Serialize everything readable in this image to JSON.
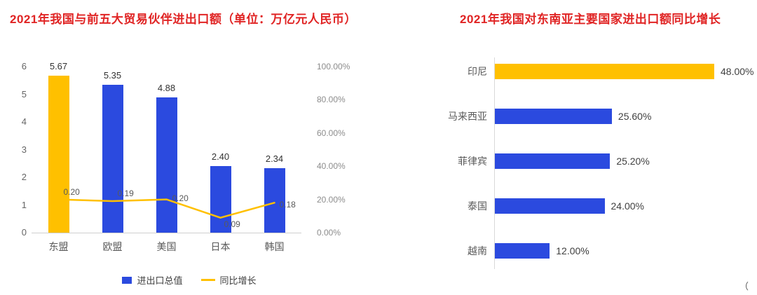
{
  "colors": {
    "title_red": "#E02424",
    "blue": "#2B4ADF",
    "gold": "#FFC000",
    "axis_gray": "#cfcfcf"
  },
  "chart_data": [
    {
      "type": "bar",
      "title": "2021年我国与前五大贸易伙伴进出口额（单位：万亿元人民币）",
      "categories": [
        "东盟",
        "欧盟",
        "美国",
        "日本",
        "韩国"
      ],
      "series": [
        {
          "name": "进出口总值",
          "type": "bar",
          "axis": "left",
          "values": [
            5.67,
            5.35,
            4.88,
            2.4,
            2.34
          ],
          "colors": [
            "#FFC000",
            "#2B4ADF",
            "#2B4ADF",
            "#2B4ADF",
            "#2B4ADF"
          ]
        },
        {
          "name": "同比增长",
          "type": "line",
          "axis": "right",
          "values": [
            0.2,
            0.19,
            0.2,
            0.09,
            0.18
          ],
          "color": "#FFC000"
        }
      ],
      "bar_labels": [
        "5.67",
        "5.35",
        "4.88",
        "2.40",
        "2.34"
      ],
      "line_labels": [
        "0.20",
        "0.19",
        "0.20",
        "0.09",
        "0.18"
      ],
      "left_axis": {
        "min": 0,
        "max": 6,
        "ticks": [
          "0",
          "1",
          "2",
          "3",
          "4",
          "5",
          "6"
        ]
      },
      "right_axis": {
        "min": 0,
        "max": 1,
        "ticks": [
          "0.00%",
          "20.00%",
          "40.00%",
          "60.00%",
          "80.00%",
          "100.00%"
        ]
      },
      "legend_position": "bottom",
      "grid": false
    },
    {
      "type": "bar",
      "orientation": "horizontal",
      "title": "2021年我国对东南亚主要国家进出口额同比增长",
      "categories": [
        "印尼",
        "马来西亚",
        "菲律宾",
        "泰国",
        "越南"
      ],
      "values": [
        48.0,
        25.6,
        25.2,
        24.0,
        12.0
      ],
      "value_labels": [
        "48.00%",
        "25.60%",
        "25.20%",
        "24.00%",
        "12.00%"
      ],
      "colors": [
        "#FFC000",
        "#2B4ADF",
        "#2B4ADF",
        "#2B4ADF",
        "#2B4ADF"
      ],
      "xlim": [
        0,
        48
      ],
      "grid": false,
      "legend_position": "none"
    }
  ],
  "misc": {
    "corner_text": "（"
  }
}
